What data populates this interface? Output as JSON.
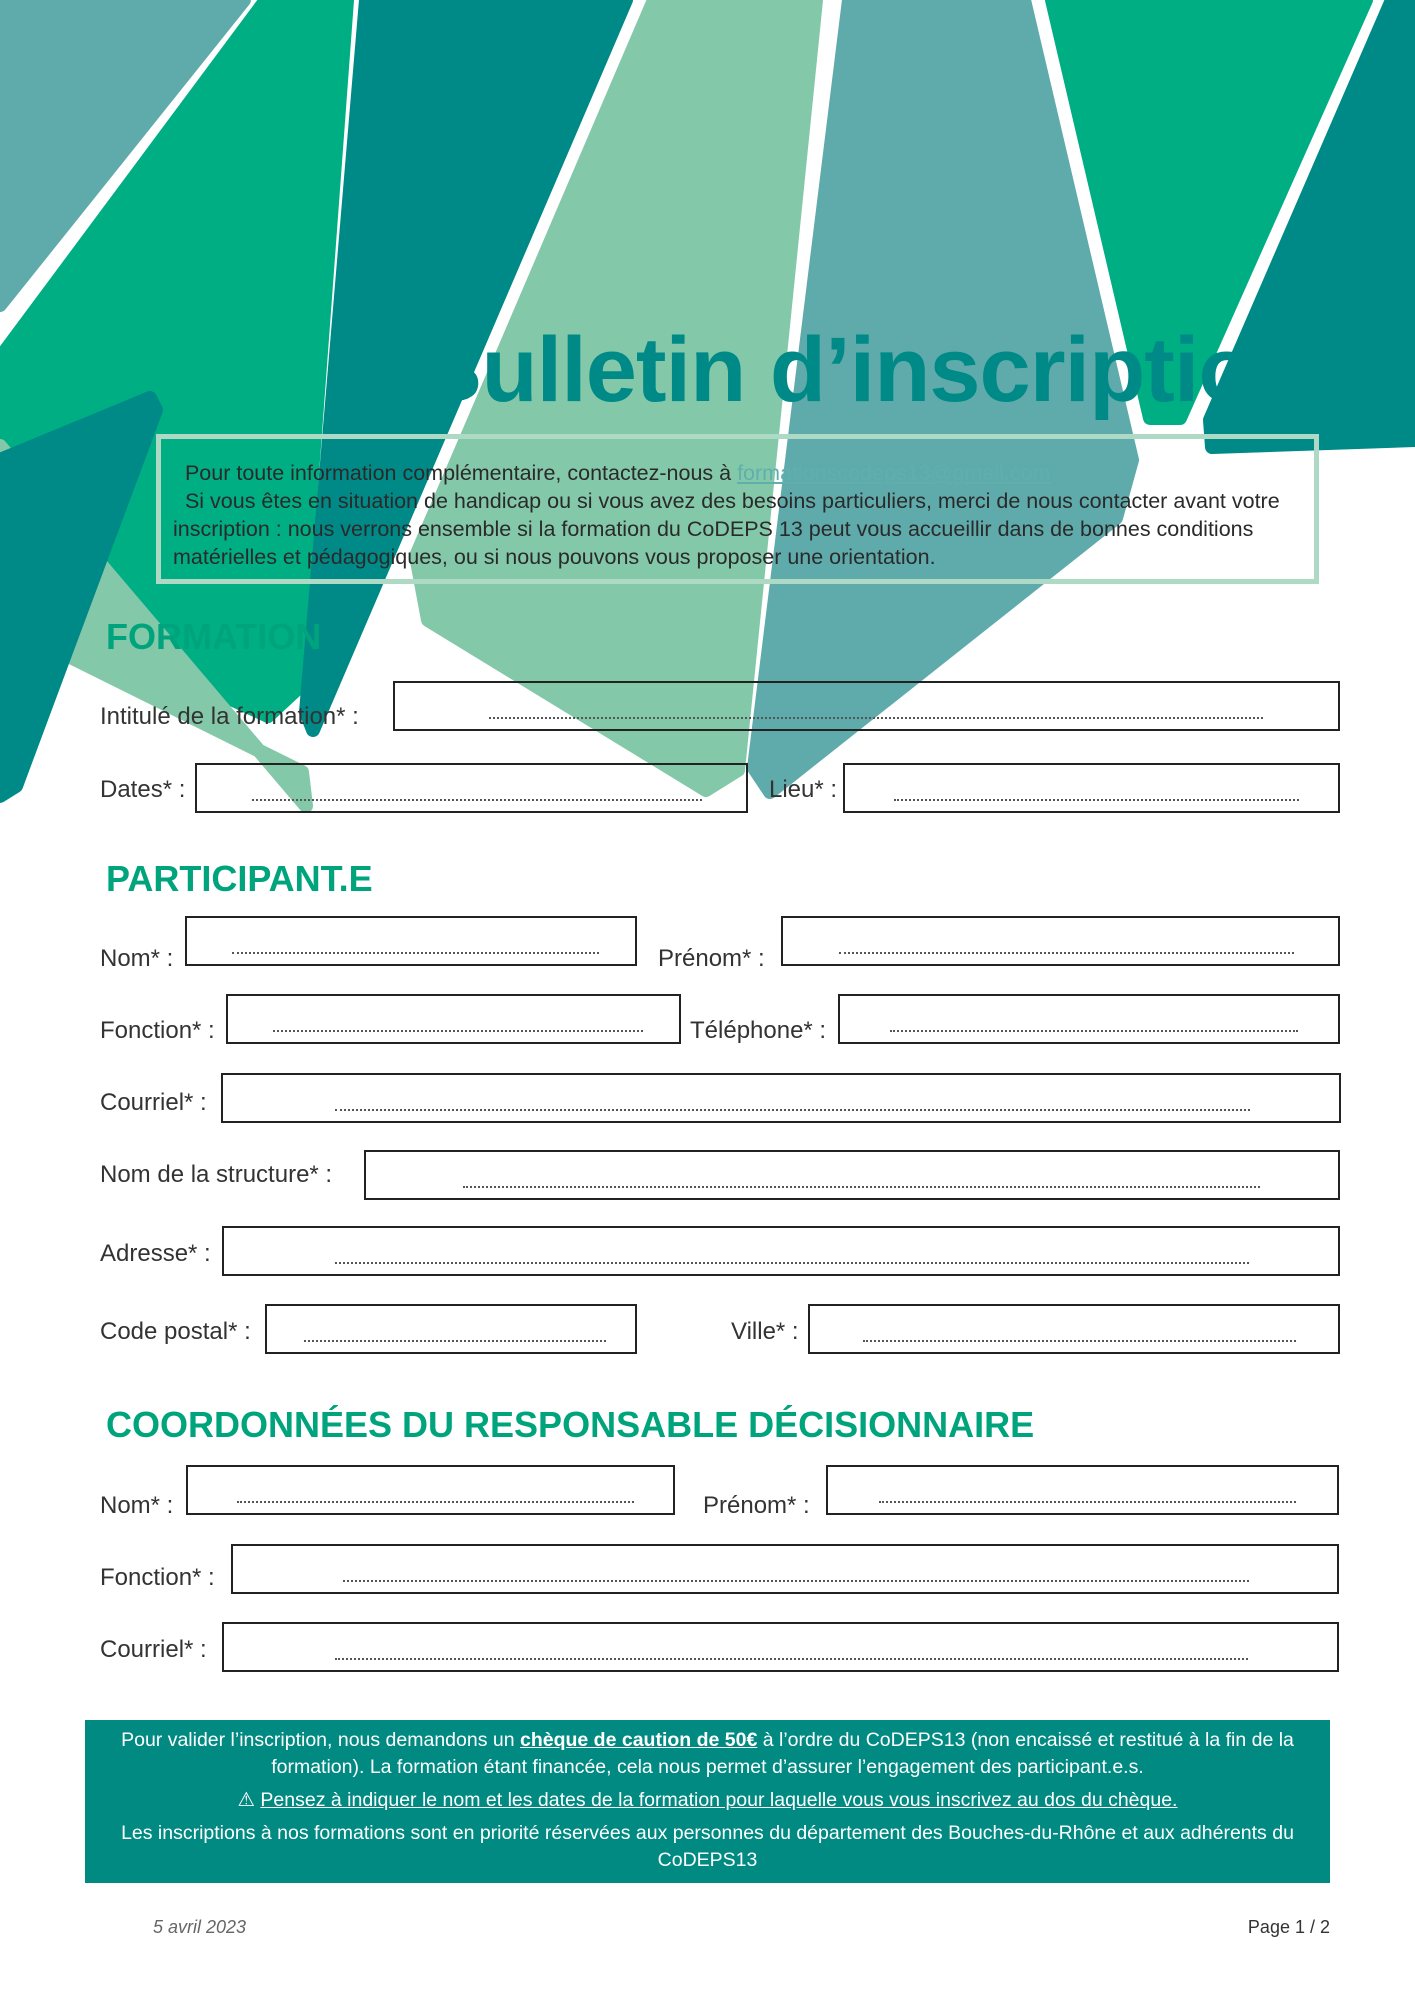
{
  "colors": {
    "dark_teal": "#008a87",
    "green": "#00ae84",
    "light_green": "#84c8aa",
    "gray_teal": "#5fabab",
    "heading": "#00a47c",
    "banner": "#008a82",
    "info_border": "#aed9c5"
  },
  "title": "Bulletin d’inscription",
  "info": {
    "line1_prefix": "Pour toute information complémentaire, contactez-nous à ",
    "email": "formationscodeps13@gmail.com",
    "line2": "Si vous êtes en situation de handicap ou si vous avez des besoins particuliers, merci de nous contacter avant votre inscription : nous verrons ensemble si la formation du CoDEPS 13 peut vous accueillir dans de bonnes conditions matérielles et pédagogiques, ou si nous pouvons vous proposer une orientation."
  },
  "sections": {
    "formation": {
      "heading": "FORMATION",
      "intitule": "Intitulé de la formation* :",
      "dates": "Dates* :",
      "lieu": "Lieu* :"
    },
    "participant": {
      "heading": "PARTICIPANT.E",
      "nom": "Nom* :",
      "prenom": "Prénom* :",
      "fonction": "Fonction* :",
      "telephone": "Téléphone* :",
      "courriel": "Courriel* :",
      "structure": "Nom de la structure* :",
      "adresse": "Adresse* :",
      "code_postal": "Code postal* :",
      "ville": "Ville* :"
    },
    "responsable": {
      "heading": "COORDONNÉES DU RESPONSABLE DÉCISIONNAIRE",
      "nom": "Nom* :",
      "prenom": "Prénom* :",
      "fonction": "Fonction* :",
      "courriel": "Courriel* :"
    }
  },
  "banner": {
    "p1_a": "Pour valider l’inscription, nous demandons un ",
    "p1_bold": "chèque de caution de 50€",
    "p1_b": " à l’ordre du CoDEPS13 (non encaissé et restitué à la fin de la formation). La formation étant financée, cela nous permet d’assurer l’engagement des participant.e.s.",
    "warning_icon": "⚠",
    "p2": "Pensez à indiquer le nom et les dates de la formation pour laquelle vous vous inscrivez au dos du chèque.",
    "p3": "Les inscriptions à nos formations sont en priorité réservées aux personnes du département des Bouches-du-Rhône et aux adhérents du CoDEPS13"
  },
  "footer": {
    "date": "5 avril 2023",
    "page": "Page 1 / 2"
  }
}
